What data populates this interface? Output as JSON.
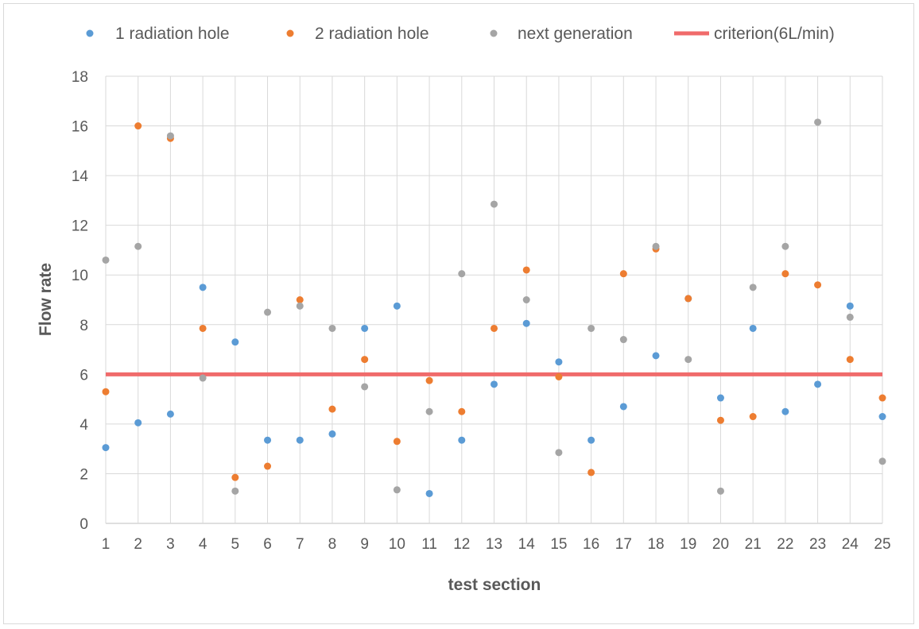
{
  "chart_data": {
    "type": "scatter",
    "title": "",
    "xlabel": "test section",
    "ylabel": "Flow rate",
    "x": [
      1,
      2,
      3,
      4,
      5,
      6,
      7,
      8,
      9,
      10,
      11,
      12,
      13,
      14,
      15,
      16,
      17,
      18,
      19,
      20,
      21,
      22,
      23,
      24,
      25
    ],
    "xlim": [
      1,
      25
    ],
    "ylim": [
      0,
      18
    ],
    "yticks": [
      0,
      2,
      4,
      6,
      8,
      10,
      12,
      14,
      16,
      18
    ],
    "grid": true,
    "legend_position": "top",
    "series": [
      {
        "name": "1 radiation hole",
        "color": "#5b9bd5",
        "values": [
          3.05,
          4.05,
          4.4,
          9.5,
          7.3,
          3.35,
          3.35,
          3.6,
          7.85,
          8.75,
          1.2,
          3.35,
          5.6,
          8.05,
          6.5,
          3.35,
          4.7,
          6.75,
          9.05,
          5.05,
          7.85,
          4.5,
          5.6,
          8.75,
          4.3
        ]
      },
      {
        "name": "2 radiation hole",
        "color": "#ed7d31",
        "values": [
          5.3,
          16.0,
          15.5,
          7.85,
          1.85,
          2.3,
          9.0,
          4.6,
          6.6,
          3.3,
          5.75,
          4.5,
          7.85,
          10.2,
          5.9,
          2.05,
          10.05,
          11.05,
          9.05,
          4.15,
          4.3,
          10.05,
          9.6,
          6.6,
          5.05
        ]
      },
      {
        "name": "next generation",
        "color": "#a5a5a5",
        "values": [
          10.6,
          11.15,
          15.6,
          5.85,
          1.3,
          8.5,
          8.75,
          7.85,
          5.5,
          1.35,
          4.5,
          10.05,
          12.85,
          9.0,
          2.85,
          7.85,
          7.4,
          11.15,
          6.6,
          1.3,
          9.5,
          11.15,
          16.15,
          8.3,
          2.5
        ]
      }
    ],
    "reference_line": {
      "name": "criterion(6L/min)",
      "color": "#f06b6b",
      "y": 6
    }
  }
}
